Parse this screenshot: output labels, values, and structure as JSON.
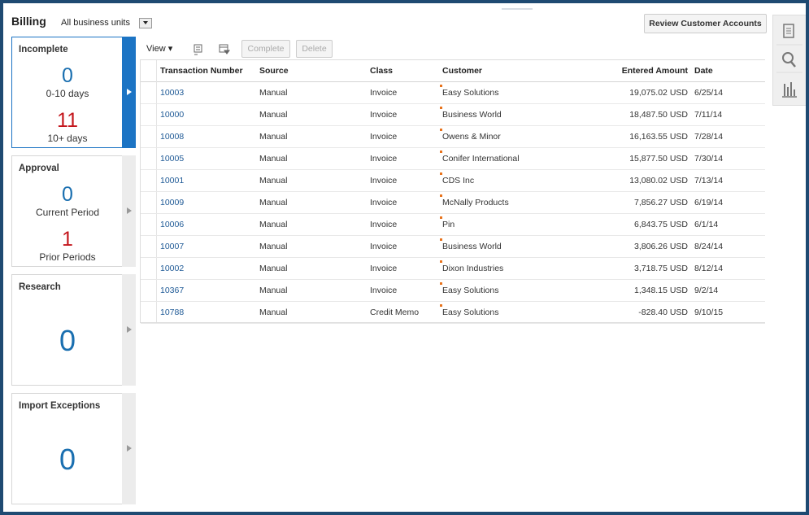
{
  "header": {
    "title": "Billing",
    "business_unit": "All business units",
    "button": "Review Customer Accounts"
  },
  "cards": [
    {
      "title": "Incomplete",
      "metrics": [
        {
          "value": 0,
          "label": "0-10 days"
        },
        {
          "value": 11,
          "label": "10+ days"
        }
      ]
    },
    {
      "title": "Approval",
      "metrics": [
        {
          "value": 0,
          "label": "Current Period"
        },
        {
          "value": 1,
          "label": "Prior Periods"
        }
      ]
    },
    {
      "title": "Research",
      "metrics": [
        {
          "value": 0
        }
      ]
    },
    {
      "title": "Import Exceptions",
      "metrics": [
        {
          "value": 0
        }
      ]
    }
  ],
  "toolbar": {
    "view": "View",
    "complete": "Complete",
    "delete": "Delete"
  },
  "table": {
    "columns": [
      "Transaction Number",
      "Source",
      "Class",
      "Customer",
      "Entered Amount",
      "Date"
    ],
    "rows": [
      [
        "10003",
        "Manual",
        "Invoice",
        "Easy Solutions",
        "19,075.02 USD",
        "6/25/14"
      ],
      [
        "10000",
        "Manual",
        "Invoice",
        "Business World",
        "18,487.50 USD",
        "7/11/14"
      ],
      [
        "10008",
        "Manual",
        "Invoice",
        "Owens & Minor",
        "16,163.55 USD",
        "7/28/14"
      ],
      [
        "10005",
        "Manual",
        "Invoice",
        "Conifer International",
        "15,877.50 USD",
        "7/30/14"
      ],
      [
        "10001",
        "Manual",
        "Invoice",
        "CDS Inc",
        "13,080.02 USD",
        "7/13/14"
      ],
      [
        "10009",
        "Manual",
        "Invoice",
        "McNally Products",
        "7,856.27 USD",
        "6/19/14"
      ],
      [
        "10006",
        "Manual",
        "Invoice",
        "Pin",
        "6,843.75 USD",
        "6/1/14"
      ],
      [
        "10007",
        "Manual",
        "Invoice",
        "Business World",
        "3,806.26 USD",
        "8/24/14"
      ],
      [
        "10002",
        "Manual",
        "Invoice",
        "Dixon Industries",
        "3,718.75 USD",
        "8/12/14"
      ],
      [
        "10367",
        "Manual",
        "Invoice",
        "Easy Solutions",
        "1,348.15 USD",
        "9/2/14"
      ],
      [
        "10788",
        "Manual",
        "Credit Memo",
        "Easy Solutions",
        "-828.40 USD",
        "9/10/15"
      ]
    ]
  }
}
